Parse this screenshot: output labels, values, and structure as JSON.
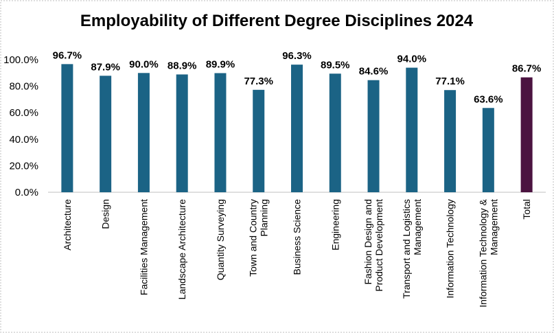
{
  "chart_data": {
    "type": "bar",
    "title": "Employability of Different Degree Disciplines 2024",
    "xlabel": "",
    "ylabel": "",
    "ylim": [
      0,
      100
    ],
    "yticks": [
      "0.0%",
      "20.0%",
      "40.0%",
      "60.0%",
      "80.0%",
      "100.0%"
    ],
    "grid": false,
    "legend": "none",
    "categories": [
      [
        "Architecture"
      ],
      [
        "Design"
      ],
      [
        "Facilities Management"
      ],
      [
        "Landscape Architecture"
      ],
      [
        "Quantity Surveying"
      ],
      [
        "Town and Country",
        "Planning"
      ],
      [
        "Business Science"
      ],
      [
        "Engineering"
      ],
      [
        "Fashion Design and",
        "Product Development"
      ],
      [
        "Transport and Logistics",
        "Management"
      ],
      [
        "Information Technology"
      ],
      [
        "Information Technology &",
        "Management"
      ],
      [
        "Total"
      ]
    ],
    "values": [
      96.7,
      87.9,
      90.0,
      88.9,
      89.9,
      77.3,
      96.3,
      89.5,
      84.6,
      94.0,
      77.1,
      63.6,
      86.7
    ],
    "data_labels": [
      "96.7%",
      "87.9%",
      "90.0%",
      "88.9%",
      "89.9%",
      "77.3%",
      "96.3%",
      "89.5%",
      "84.6%",
      "94.0%",
      "77.1%",
      "63.6%",
      "86.7%"
    ],
    "colors": {
      "bar": "#1b6385",
      "total_bar": "#4b1340",
      "axis": "#bfbfbf",
      "border": "#bfbfbf",
      "text": "#000000"
    }
  }
}
